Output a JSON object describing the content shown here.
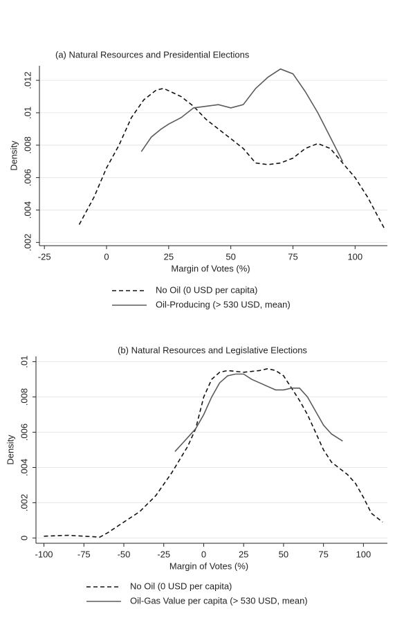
{
  "chart_data": [
    {
      "type": "line",
      "title": "(a) Natural Resources and Presidential Elections",
      "x_label": "Margin of Votes (%)",
      "y_label": "Density",
      "xlim": [
        -27,
        113
      ],
      "xticks": [
        -25,
        0,
        25,
        50,
        75,
        100
      ],
      "ylim": [
        0.0018,
        0.0129
      ],
      "yticks": [
        {
          "value": 0.002,
          "label": ".002"
        },
        {
          "value": 0.004,
          "label": ".004"
        },
        {
          "value": 0.006,
          "label": ".006"
        },
        {
          "value": 0.008,
          "label": ".008"
        },
        {
          "value": 0.01,
          "label": ".01"
        },
        {
          "value": 0.012,
          "label": ".012"
        }
      ],
      "grid": true,
      "series": [
        {
          "name": "No Oil (0 USD per capita)",
          "color": "#111111",
          "line_style": "dashed",
          "x": [
            -11,
            -5,
            0,
            5,
            10,
            15,
            20,
            23,
            30,
            35,
            40,
            45,
            50,
            55,
            60,
            65,
            70,
            75,
            80,
            85,
            90,
            95,
            100,
            105,
            112
          ],
          "values": [
            0.0031,
            0.0048,
            0.0066,
            0.008,
            0.0097,
            0.0108,
            0.0114,
            0.0115,
            0.011,
            0.0104,
            0.0096,
            0.009,
            0.0084,
            0.0078,
            0.0069,
            0.0068,
            0.0069,
            0.0072,
            0.0078,
            0.0081,
            0.0078,
            0.0069,
            0.006,
            0.0048,
            0.0028
          ]
        },
        {
          "name": "Oil-Producing (> 530 USD, mean)",
          "color": "#5a5a5a",
          "line_style": "solid",
          "x": [
            14,
            18,
            22,
            25,
            30,
            35,
            40,
            45,
            50,
            55,
            60,
            65,
            70,
            75,
            80,
            85,
            90,
            95
          ],
          "values": [
            0.0076,
            0.0085,
            0.009,
            0.0093,
            0.0097,
            0.0103,
            0.0104,
            0.0105,
            0.0103,
            0.0105,
            0.0115,
            0.0122,
            0.0127,
            0.0124,
            0.0113,
            0.01,
            0.0085,
            0.007
          ]
        }
      ]
    },
    {
      "type": "line",
      "title": "(b) Natural Resources and Legislative Elections",
      "x_label": "Margin of Votes (%)",
      "y_label": "Density",
      "xlim": [
        -105,
        115
      ],
      "xticks": [
        -100,
        -75,
        -50,
        -25,
        0,
        25,
        50,
        75,
        100
      ],
      "ylim": [
        -0.0003,
        0.0103
      ],
      "yticks": [
        0,
        {
          "value": 0.002,
          "label": ".002"
        },
        {
          "value": 0.004,
          "label": ".004"
        },
        {
          "value": 0.006,
          "label": ".006"
        },
        {
          "value": 0.008,
          "label": ".008"
        },
        {
          "value": 0.01,
          "label": ".01"
        }
      ],
      "grid": true,
      "series": [
        {
          "name": "No Oil (0 USD per capita)",
          "color": "#111111",
          "line_style": "dashed",
          "x": [
            -100,
            -85,
            -75,
            -65,
            -60,
            -50,
            -40,
            -30,
            -20,
            -10,
            -5,
            0,
            5,
            10,
            15,
            25,
            35,
            40,
            45,
            50,
            55,
            60,
            65,
            70,
            75,
            80,
            90,
            95,
            100,
            105,
            112
          ],
          "values": [
            0.0001,
            0.00015,
            0.0001,
            5e-05,
            0.0003,
            0.0009,
            0.0015,
            0.0024,
            0.0037,
            0.0052,
            0.0062,
            0.008,
            0.009,
            0.0094,
            0.0095,
            0.0094,
            0.0095,
            0.0096,
            0.0095,
            0.0092,
            0.0085,
            0.0078,
            0.007,
            0.006,
            0.005,
            0.0043,
            0.0036,
            0.0031,
            0.0023,
            0.0014,
            0.0009
          ]
        },
        {
          "name": "Oil-Gas Value per capita (> 530 USD, mean)",
          "color": "#5a5a5a",
          "line_style": "solid",
          "x": [
            -18,
            -10,
            -5,
            0,
            5,
            10,
            15,
            20,
            25,
            30,
            35,
            40,
            45,
            50,
            55,
            60,
            65,
            70,
            75,
            80,
            87
          ],
          "values": [
            0.0049,
            0.0057,
            0.0062,
            0.007,
            0.008,
            0.0088,
            0.0092,
            0.0093,
            0.0093,
            0.009,
            0.0088,
            0.0086,
            0.0084,
            0.0084,
            0.0085,
            0.0085,
            0.008,
            0.0072,
            0.0064,
            0.0059,
            0.0055
          ]
        }
      ]
    }
  ]
}
